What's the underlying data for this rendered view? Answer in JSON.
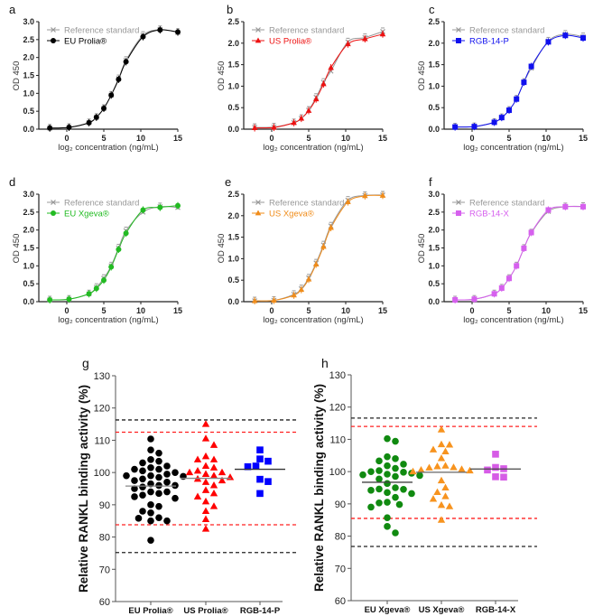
{
  "chart_data": [
    {
      "panel": "a",
      "type": "line",
      "xlabel": "log₂ concentration (ng/mL)",
      "ylabel": "OD 450",
      "xlim": [
        -3,
        15
      ],
      "xticks": [
        0,
        5,
        10,
        15
      ],
      "ylim": [
        0,
        3.0
      ],
      "yticks": [
        "0.0",
        "0.5",
        "1.0",
        "1.5",
        "2.0",
        "2.5",
        "3.0"
      ],
      "color": "#000000",
      "marker": "circle",
      "legend": [
        "Reference standard",
        "EU Prolia®"
      ],
      "x": [
        -2.3,
        0.3,
        3,
        4,
        5,
        6,
        7,
        8,
        10.3,
        12.6,
        15
      ],
      "reference": [
        0.03,
        0.05,
        0.18,
        0.33,
        0.58,
        0.95,
        1.41,
        1.92,
        2.62,
        2.78,
        2.7
      ],
      "sample": [
        0.03,
        0.05,
        0.18,
        0.33,
        0.58,
        0.95,
        1.39,
        1.88,
        2.58,
        2.77,
        2.71
      ]
    },
    {
      "panel": "b",
      "type": "line",
      "xlabel": "log₂ concentration (ng/mL)",
      "ylabel": "OD 450",
      "xlim": [
        -3,
        15
      ],
      "xticks": [
        0,
        5,
        10,
        15
      ],
      "ylim": [
        0,
        2.5
      ],
      "yticks": [
        "0.0",
        "0.5",
        "1.0",
        "1.5",
        "2.0",
        "2.5"
      ],
      "color": "#ee1111",
      "marker": "triangle",
      "legend": [
        "Reference standard",
        "US Prolia®"
      ],
      "x": [
        -2.3,
        0.3,
        3,
        4,
        5,
        6,
        7,
        8,
        10.3,
        12.6,
        15
      ],
      "reference": [
        0.04,
        0.05,
        0.15,
        0.25,
        0.44,
        0.74,
        1.09,
        1.35,
        2.03,
        2.13,
        2.27
      ],
      "sample": [
        0.03,
        0.04,
        0.15,
        0.25,
        0.43,
        0.7,
        1.05,
        1.43,
        1.98,
        2.1,
        2.21
      ]
    },
    {
      "panel": "c",
      "type": "line",
      "xlabel": "log₂ concentration (ng/mL)",
      "ylabel": "OD 450",
      "xlim": [
        -3,
        15
      ],
      "xticks": [
        0,
        5,
        10,
        15
      ],
      "ylim": [
        0,
        2.5
      ],
      "yticks": [
        "0.0",
        "0.5",
        "1.0",
        "1.5",
        "2.0",
        "2.5"
      ],
      "color": "#1010ee",
      "marker": "square",
      "legend": [
        "Reference standard",
        "RGB-14-P"
      ],
      "x": [
        -2.3,
        0.3,
        3,
        4,
        5,
        6,
        7,
        8,
        10.3,
        12.6,
        15
      ],
      "reference": [
        0.05,
        0.06,
        0.16,
        0.27,
        0.44,
        0.7,
        1.09,
        1.42,
        2.05,
        2.21,
        2.15
      ],
      "sample": [
        0.05,
        0.06,
        0.16,
        0.27,
        0.44,
        0.7,
        1.09,
        1.46,
        2.03,
        2.18,
        2.12
      ]
    },
    {
      "panel": "d",
      "type": "line",
      "xlabel": "log₂ concentration (ng/mL)",
      "ylabel": "OD 450",
      "xlim": [
        -3,
        15
      ],
      "xticks": [
        0,
        5,
        10,
        15
      ],
      "ylim": [
        0,
        3.0
      ],
      "yticks": [
        "0.0",
        "0.5",
        "1.0",
        "1.5",
        "2.0",
        "2.5",
        "3.0"
      ],
      "color": "#22bb22",
      "marker": "circle",
      "legend": [
        "Reference standard",
        "EU Xgeva®"
      ],
      "x": [
        -2.3,
        0.3,
        3,
        4,
        5,
        6,
        7,
        8,
        10.3,
        12.6,
        15
      ],
      "reference": [
        0.05,
        0.07,
        0.22,
        0.4,
        0.65,
        1.0,
        1.5,
        1.98,
        2.5,
        2.65,
        2.63
      ],
      "sample": [
        0.05,
        0.07,
        0.22,
        0.37,
        0.6,
        0.97,
        1.46,
        1.91,
        2.56,
        2.63,
        2.68
      ]
    },
    {
      "panel": "e",
      "type": "line",
      "xlabel": "log₂ concentration (ng/mL)",
      "ylabel": "OD 450",
      "xlim": [
        -3,
        15
      ],
      "xticks": [
        0,
        5,
        10,
        15
      ],
      "ylim": [
        0,
        2.5
      ],
      "yticks": [
        "0.0",
        "0.5",
        "1.0",
        "1.5",
        "2.0",
        "2.5"
      ],
      "color": "#f08c1a",
      "marker": "triangle",
      "legend": [
        "Reference standard",
        "US Xgeva®"
      ],
      "x": [
        -2.3,
        0.3,
        3,
        4,
        5,
        6,
        7,
        8,
        10.3,
        12.6,
        15
      ],
      "reference": [
        0.02,
        0.03,
        0.17,
        0.3,
        0.55,
        0.9,
        1.32,
        1.76,
        2.36,
        2.47,
        2.48
      ],
      "sample": [
        0.02,
        0.03,
        0.15,
        0.28,
        0.52,
        0.87,
        1.28,
        1.72,
        2.32,
        2.46,
        2.47
      ]
    },
    {
      "panel": "f",
      "type": "line",
      "xlabel": "log₂ concentration (ng/mL)",
      "ylabel": "OD 450",
      "xlim": [
        -3,
        15
      ],
      "xticks": [
        0,
        5,
        10,
        15
      ],
      "ylim": [
        0,
        3.0
      ],
      "yticks": [
        "0.0",
        "0.5",
        "1.0",
        "1.5",
        "2.0",
        "2.5",
        "3.0"
      ],
      "color": "#d660ee",
      "marker": "square",
      "legend": [
        "Reference standard",
        "RGB-14-X"
      ],
      "x": [
        -2.3,
        0.3,
        3,
        4,
        5,
        6,
        7,
        8,
        10.3,
        12.6,
        15
      ],
      "reference": [
        0.05,
        0.07,
        0.22,
        0.38,
        0.65,
        1.0,
        1.49,
        1.92,
        2.52,
        2.65,
        2.66
      ],
      "sample": [
        0.05,
        0.07,
        0.22,
        0.38,
        0.65,
        1.0,
        1.49,
        1.93,
        2.56,
        2.65,
        2.65
      ]
    },
    {
      "panel": "g",
      "type": "scatter",
      "ylabel": "Relative RANKL binding activity (%)",
      "ylim": [
        60,
        130
      ],
      "yticks": [
        "60",
        "70",
        "80",
        "90",
        "100",
        "110",
        "120",
        "130"
      ],
      "limits": {
        "black": [
          116.3,
          75.2
        ],
        "red": [
          112.5,
          83.8
        ]
      },
      "groups": [
        {
          "name": "EU Prolia®",
          "color": "#000000",
          "marker": "circle",
          "mean": 95.8,
          "mean_color": "#888888",
          "values": [
            110.4,
            107,
            106,
            104,
            103.5,
            103,
            102,
            101.5,
            101,
            101,
            100.5,
            100,
            99.5,
            99,
            99,
            98.8,
            98.5,
            98,
            97.5,
            97,
            96.5,
            96,
            96,
            95.5,
            95,
            94,
            94,
            93.5,
            93,
            92.5,
            92,
            90,
            89.5,
            88,
            87.5,
            86,
            85.8,
            85,
            85,
            79
          ]
        },
        {
          "name": "US Prolia®",
          "color": "#ff0000",
          "marker": "triangle",
          "mean": 98.2,
          "mean_color": "#888888",
          "values": [
            115,
            110.5,
            108.5,
            105,
            104,
            104,
            102,
            101.5,
            100.5,
            100,
            100,
            99.5,
            99,
            98.5,
            98,
            97.5,
            97,
            96,
            94.5,
            93.5,
            92.5,
            91,
            89.5,
            88,
            85.5,
            82.5
          ]
        },
        {
          "name": "RGB-14-P",
          "color": "#0000ff",
          "marker": "square",
          "mean": 101,
          "mean_color": "#333333",
          "values": [
            107,
            104.2,
            103.5,
            102,
            101.8,
            97.9,
            97.2,
            93.5
          ]
        }
      ]
    },
    {
      "panel": "h",
      "type": "scatter",
      "ylabel": "Relative RANKL binding activity (%)",
      "ylim": [
        60,
        130
      ],
      "yticks": [
        "60",
        "70",
        "80",
        "90",
        "100",
        "110",
        "120",
        "130"
      ],
      "limits": {
        "black": [
          116.6,
          76.8
        ],
        "red": [
          114,
          85.5
        ]
      },
      "groups": [
        {
          "name": "EU Xgeva®",
          "color": "#108a10",
          "marker": "circle",
          "mean": 96.7,
          "mean_color": "#444444",
          "values": [
            110.2,
            109.4,
            104.6,
            104,
            103.3,
            102.3,
            101.8,
            101,
            100.3,
            100,
            99.8,
            99.5,
            99.2,
            99,
            98.8,
            98.5,
            97.7,
            96.3,
            95,
            94.6,
            94.5,
            94.2,
            93.5,
            93.2,
            92,
            90.5,
            90.3,
            89.8,
            89,
            85.7,
            83,
            81
          ]
        },
        {
          "name": "US Xgeva®",
          "color": "#f7931e",
          "marker": "triangle",
          "mean": 99.8,
          "mean_color": "#666666",
          "values": [
            113,
            108.4,
            108.3,
            106.8,
            106.2,
            104.1,
            101.8,
            101.6,
            101.3,
            101.2,
            100.7,
            100.5,
            100.3,
            100,
            97.2,
            95,
            93.6,
            92.3,
            91.5,
            89.6,
            89.2,
            85
          ]
        },
        {
          "name": "RGB-14-X",
          "color": "#d65ce6",
          "marker": "square",
          "mean": 100.8,
          "mean_color": "#444444",
          "values": [
            105.4,
            101.3,
            100.9,
            100.5,
            98.4,
            98.3
          ]
        }
      ]
    }
  ]
}
